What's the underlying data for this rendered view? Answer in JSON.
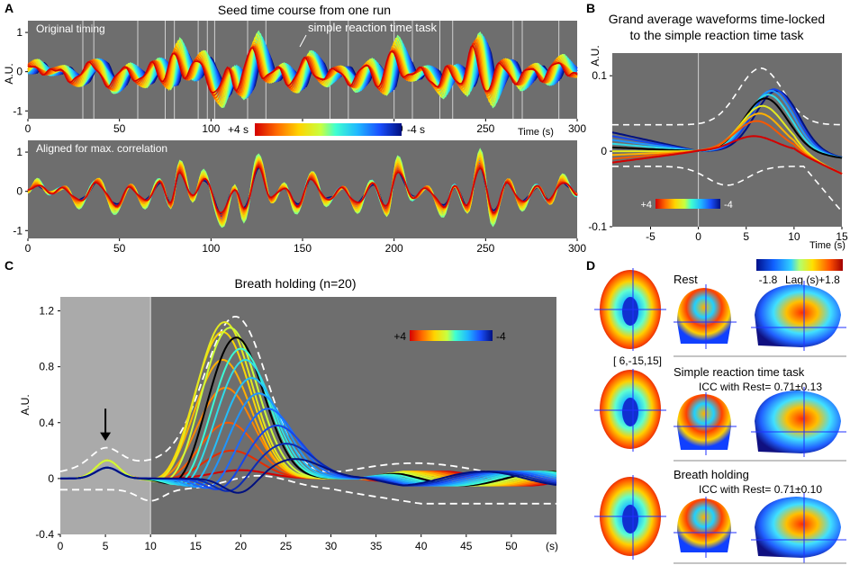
{
  "chart_data": [
    {
      "panel": "A",
      "type": "line",
      "title": "Seed time course from one run",
      "subplots": [
        {
          "label": "Original timing",
          "annotation": "simple reaction time task",
          "xlabel": "Time (s)",
          "ylabel": "A.U.",
          "xlim": [
            0,
            300
          ],
          "ylim": [
            -1.2,
            1.3
          ],
          "xticks": [
            "0",
            "50",
            "100",
            "150",
            "200",
            "250",
            "300"
          ],
          "yticks": [
            "-1",
            "0",
            "1"
          ],
          "task_onsets": [
            30,
            36,
            60,
            75,
            80,
            93,
            98,
            102,
            120,
            130,
            165,
            175,
            200,
            210,
            225,
            232,
            265,
            270,
            290
          ],
          "colorbar": {
            "left": "+4 s",
            "right": "-4 s"
          },
          "series_lags": [
            -4,
            -3.5,
            -3,
            -2.5,
            -2,
            -1.5,
            -1,
            -0.5,
            0,
            0.5,
            1,
            1.5,
            2,
            2.5,
            3,
            3.5,
            4
          ]
        },
        {
          "label": "Aligned for max. correlation",
          "xlabel": "",
          "ylabel": "",
          "xlim": [
            0,
            300
          ],
          "ylim": [
            -1.2,
            1.3
          ],
          "xticks": [
            "0",
            "50",
            "100",
            "150",
            "200",
            "250",
            "300"
          ],
          "yticks": [
            "-1",
            "0",
            "1"
          ]
        }
      ],
      "peaks": [
        [
          0,
          0
        ],
        [
          5,
          0.25
        ],
        [
          12,
          -0.05
        ],
        [
          20,
          0.1
        ],
        [
          28,
          -0.35
        ],
        [
          38,
          0.3
        ],
        [
          48,
          -0.5
        ],
        [
          56,
          0.15
        ],
        [
          64,
          -0.35
        ],
        [
          72,
          0.3
        ],
        [
          78,
          -0.4
        ],
        [
          83,
          0.7
        ],
        [
          90,
          -0.2
        ],
        [
          96,
          0.45
        ],
        [
          106,
          -0.8
        ],
        [
          113,
          0.1
        ],
        [
          118,
          -0.65
        ],
        [
          126,
          0.85
        ],
        [
          133,
          -0.25
        ],
        [
          140,
          0.15
        ],
        [
          147,
          -0.5
        ],
        [
          155,
          0.45
        ],
        [
          163,
          -0.3
        ],
        [
          172,
          0.1
        ],
        [
          180,
          -0.45
        ],
        [
          188,
          0.25
        ],
        [
          196,
          -0.55
        ],
        [
          202,
          0.75
        ],
        [
          210,
          -0.2
        ],
        [
          218,
          0.1
        ],
        [
          227,
          -0.55
        ],
        [
          233,
          0.15
        ],
        [
          240,
          -0.5
        ],
        [
          247,
          0.9
        ],
        [
          254,
          -0.75
        ],
        [
          262,
          0.3
        ],
        [
          270,
          -0.4
        ],
        [
          278,
          0.15
        ],
        [
          285,
          -0.3
        ],
        [
          292,
          0.35
        ],
        [
          300,
          -0.1
        ]
      ]
    },
    {
      "panel": "B",
      "type": "line",
      "title_line1": "Grand average waveforms time-locked",
      "title_line2": "to the simple reaction time task",
      "xlabel": "Time (s)",
      "ylabel": "A.U.",
      "xlim": [
        -9,
        15
      ],
      "ylim": [
        -0.1,
        0.13
      ],
      "xticks": [
        "-5",
        "0",
        "5",
        "10",
        "15"
      ],
      "yticks": [
        "-0.1",
        "0",
        "0.1"
      ],
      "colorbar": {
        "left": "+4",
        "right": "-4"
      },
      "series_lags": [
        -4,
        -3,
        -2,
        -1,
        0,
        1,
        2,
        3,
        4
      ],
      "series_peak": [
        0.08,
        0.082,
        0.08,
        0.075,
        0.07,
        0.06,
        0.05,
        0.04,
        0.02
      ],
      "series_pre": [
        0.025,
        0.02,
        0.015,
        0.01,
        0.005,
        0.0,
        -0.005,
        -0.01,
        -0.015
      ],
      "ci_upper_peak": 0.11,
      "ci_lower_trough": -0.045
    },
    {
      "panel": "C",
      "type": "line",
      "title": "Breath holding (n=20)",
      "xlabel": "(s)",
      "ylabel": "A.U.",
      "xlim": [
        0,
        55
      ],
      "ylim": [
        -0.4,
        1.3
      ],
      "xticks": [
        "0",
        "5",
        "10",
        "15",
        "20",
        "25",
        "30",
        "35",
        "40",
        "45",
        "50",
        "(s)"
      ],
      "yticks": [
        "-0.4",
        "0",
        "0.4",
        "0.8",
        "1.2"
      ],
      "hold_period": [
        0,
        10
      ],
      "arrow_at": 5,
      "colorbar": {
        "left": "+4",
        "right": "-4"
      },
      "series": [
        {
          "lag": 4,
          "peak_t": 20.0,
          "amp": 0.06
        },
        {
          "lag": 3.5,
          "peak_t": 19.0,
          "amp": 0.2
        },
        {
          "lag": 3,
          "peak_t": 18.6,
          "amp": 0.4
        },
        {
          "lag": 2.5,
          "peak_t": 18.3,
          "amp": 0.65
        },
        {
          "lag": 2,
          "peak_t": 18.0,
          "amp": 0.85
        },
        {
          "lag": 1.5,
          "peak_t": 18.0,
          "amp": 1.05
        },
        {
          "lag": 1,
          "peak_t": 18.2,
          "amp": 1.12
        },
        {
          "lag": 0.5,
          "peak_t": 18.8,
          "amp": 1.08
        },
        {
          "lag": 0,
          "peak_t": 19.5,
          "amp": 1.01
        },
        {
          "lag": -0.5,
          "peak_t": 20.0,
          "amp": 0.93
        },
        {
          "lag": -1,
          "peak_t": 20.5,
          "amp": 0.85
        },
        {
          "lag": -1.5,
          "peak_t": 21.2,
          "amp": 0.72
        },
        {
          "lag": -2,
          "peak_t": 22.0,
          "amp": 0.61
        },
        {
          "lag": -2.5,
          "peak_t": 23.0,
          "amp": 0.5
        },
        {
          "lag": -3,
          "peak_t": 24.0,
          "amp": 0.38
        },
        {
          "lag": -3.5,
          "peak_t": 25.0,
          "amp": 0.25
        },
        {
          "lag": -4,
          "peak_t": 26.0,
          "amp": 0.14
        }
      ],
      "ci_upper_peak": 1.2
    },
    {
      "panel": "D",
      "type": "heatmap",
      "colorbar": {
        "min": "-1.8",
        "label": "Lag (s)",
        "max": "+1.8"
      },
      "coordinate": "[ 6,-15,15]",
      "rows": [
        {
          "label": "Rest",
          "icc": ""
        },
        {
          "label": "Simple reaction time task",
          "icc": "ICC with Rest= 0.71±0.13"
        },
        {
          "label": "Breath holding",
          "icc": "ICC with Rest= 0.71±0.10"
        }
      ]
    }
  ],
  "panel_labels": [
    "A",
    "B",
    "C",
    "D"
  ]
}
